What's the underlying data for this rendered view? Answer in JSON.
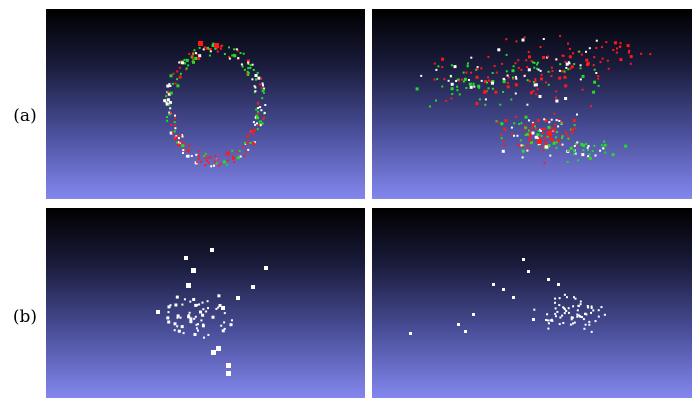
{
  "figure": {
    "rows": [
      {
        "label": "(a)",
        "panels": [
          {
            "id": "a-left"
          },
          {
            "id": "a-right"
          }
        ]
      },
      {
        "label": "(b)",
        "panels": [
          {
            "id": "b-left"
          },
          {
            "id": "b-right"
          }
        ]
      }
    ]
  },
  "colors": {
    "background_top": "#000000",
    "background_bottom": "#8387ee",
    "points_red": "#ff1a1a",
    "points_green": "#22dd22",
    "points_white": "#ffffff"
  }
}
